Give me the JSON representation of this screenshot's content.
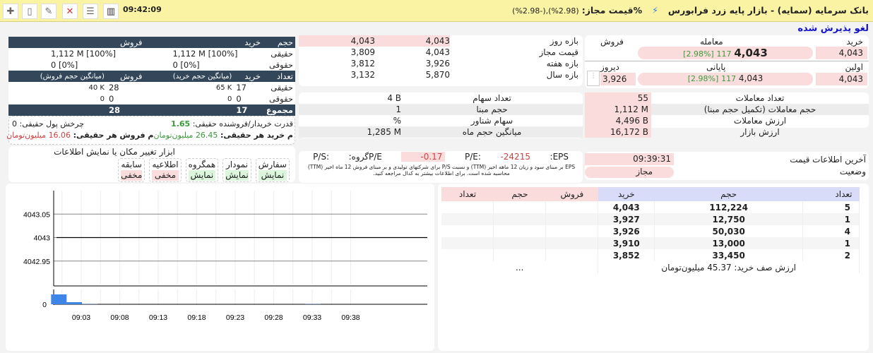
{
  "topbar": {
    "title": "بانک سرمایه (سمایه) - بازار پایه زرد فرابورس",
    "allowed_label": "%قیمت مجاز:",
    "allowed_value": "(2.98%),(-2.98%)",
    "time": "09:42:09",
    "icons": [
      "plus-icon",
      "document-icon",
      "edit-icon",
      "tools-icon",
      "list-icon",
      "chart-bars-icon"
    ]
  },
  "status": "لغو پذیرش شده",
  "quote": {
    "buy_label": "خرید",
    "trade_label": "معامله",
    "sell_label": "فروش",
    "buy": "4,043",
    "last": "4,043",
    "last_change": "117",
    "last_pct": "[2.98%]",
    "first_label": "اولین",
    "close_label": "پایانی",
    "prev_label": "دیروز",
    "first": "4,043",
    "close": "4,043",
    "close_change": "117",
    "close_pct": "[2.98%]",
    "prev": "3,926"
  },
  "stats": [
    {
      "label": "تعداد معاملات",
      "value": "55"
    },
    {
      "label": "حجم معاملات (تکمیل حجم مبنا)",
      "value": "1,112 M"
    },
    {
      "label": "ارزش معاملات",
      "value": "4,496 B"
    },
    {
      "label": "ارزش بازار",
      "value": "16,172 B"
    }
  ],
  "lastinfo": {
    "time_label": "آخرین اطلاعات قیمت",
    "time": "09:39:31",
    "state_label": "وضعیت",
    "state": "مجاز"
  },
  "ranges": [
    {
      "label": "بازه روز",
      "a": "4,043",
      "b": "4,043"
    },
    {
      "label": "قیمت مجاز",
      "a": "4,043",
      "b": "3,809"
    },
    {
      "label": "بازه هفته",
      "a": "3,926",
      "b": "3,812"
    },
    {
      "label": "بازه سال",
      "a": "5,870",
      "b": "3,132"
    }
  ],
  "shares": [
    {
      "label": "تعداد سهام",
      "value": "4 B"
    },
    {
      "label": "حجم مبنا",
      "value": "1"
    },
    {
      "label": "سهام شناور",
      "value": "%"
    },
    {
      "label": "میانگین حجم ماه",
      "value": "1,285 M"
    }
  ],
  "ratios": {
    "eps_label": "EPS:",
    "eps": "-24215",
    "pe_label": "P/E:",
    "pe": "-0.17",
    "gpe_label": "P/Eگروه:",
    "ps_label": "P/S:",
    "note": "EPS بر مبنای سود و زیان 12 ماهه اخیر (TTM) و نسبت P/S برای شرکتهای تولیدی و بر مبنای فروش 12 ماه اخیر (TTM) محاسبه شده است. برای اطلاعات بیشتر به کدال مراجعه کنید."
  },
  "clients": {
    "vol_h": [
      "حجم",
      "خرید",
      "فروش"
    ],
    "vol_rows": [
      {
        "label": "حقیقی",
        "buy": "1,112 M [100%]",
        "sell": "1,112 M [100%]"
      },
      {
        "label": "حقوقی",
        "buy": "0 [0%]",
        "sell": "0 [0%]"
      }
    ],
    "cnt_h": [
      "تعداد",
      "خرید",
      "(میانگین حجم خرید)",
      "فروش",
      "(میانگین حجم فروش)"
    ],
    "cnt_rows": [
      {
        "label": "حقیقی",
        "buy": "17",
        "buy_avg": "65 K",
        "sell": "28",
        "sell_avg": "40 K"
      },
      {
        "label": "حقوقی",
        "buy": "0",
        "buy_avg": "0",
        "sell": "0",
        "sell_avg": "0"
      }
    ],
    "total_label": "مجموع",
    "total_buy": "17",
    "total_sell": "28",
    "power_label": "قدرت خریدار/فروشنده حقیقی:",
    "power": "1.65",
    "flow_label": "چرخش پول حقیقی:",
    "flow": "0",
    "avg_buy_label": "م خرید هر حقیقی:",
    "avg_buy": "26.45 میلیون‌تومان",
    "avg_sell_label": "م فروش هر حقیقی:",
    "avg_sell": "16.06 میلیون‌تومان"
  },
  "tools": {
    "title": "ابزار تغییر مکان یا نمایش اطلاعات",
    "items": [
      {
        "name": "سفارش",
        "state": "نمایش",
        "on": true
      },
      {
        "name": "نمودار",
        "state": "نمایش",
        "on": true
      },
      {
        "name": "همگروه",
        "state": "نمایش",
        "on": true
      },
      {
        "name": "اطلاعیه",
        "state": "مخفی",
        "on": false
      },
      {
        "name": "سابقه",
        "state": "مخفی",
        "on": false
      }
    ]
  },
  "orderbook": {
    "headers": [
      "تعداد",
      "حجم",
      "خرید",
      "فروش",
      "حجم",
      "تعداد"
    ],
    "rows": [
      [
        "5",
        "112,224",
        "4,043",
        "",
        "",
        ""
      ],
      [
        "1",
        "12,750",
        "3,927",
        "",
        "",
        ""
      ],
      [
        "4",
        "50,030",
        "3,926",
        "",
        "",
        ""
      ],
      [
        "1",
        "13,000",
        "3,910",
        "",
        "",
        ""
      ],
      [
        "2",
        "33,450",
        "3,852",
        "",
        "",
        ""
      ]
    ],
    "buy_value": "ارزش صف خرید: 45.37 میلیون‌تومان",
    "sell_value": "..."
  },
  "chart_data": {
    "type": "line",
    "x_ticks": [
      "09:03",
      "09:08",
      "09:13",
      "09:18",
      "09:23",
      "09:28",
      "09:33",
      "09:38"
    ],
    "y_ticks": [
      4043.05,
      4043,
      4042.95
    ],
    "ylim": [
      4042.9,
      4043.1
    ],
    "price": [
      {
        "x": "09:00",
        "y": 4043
      },
      {
        "x": "09:40",
        "y": 4043
      }
    ],
    "volume_ticks": [
      0
    ],
    "volume": [
      {
        "x": "09:00",
        "v": 14
      },
      {
        "x": "09:02",
        "v": 3
      },
      {
        "x": "09:04",
        "v": 0.3
      },
      {
        "x": "09:33",
        "v": 0.3
      }
    ],
    "colors": {
      "volume": "#3d85e6",
      "price": "#000000"
    }
  }
}
